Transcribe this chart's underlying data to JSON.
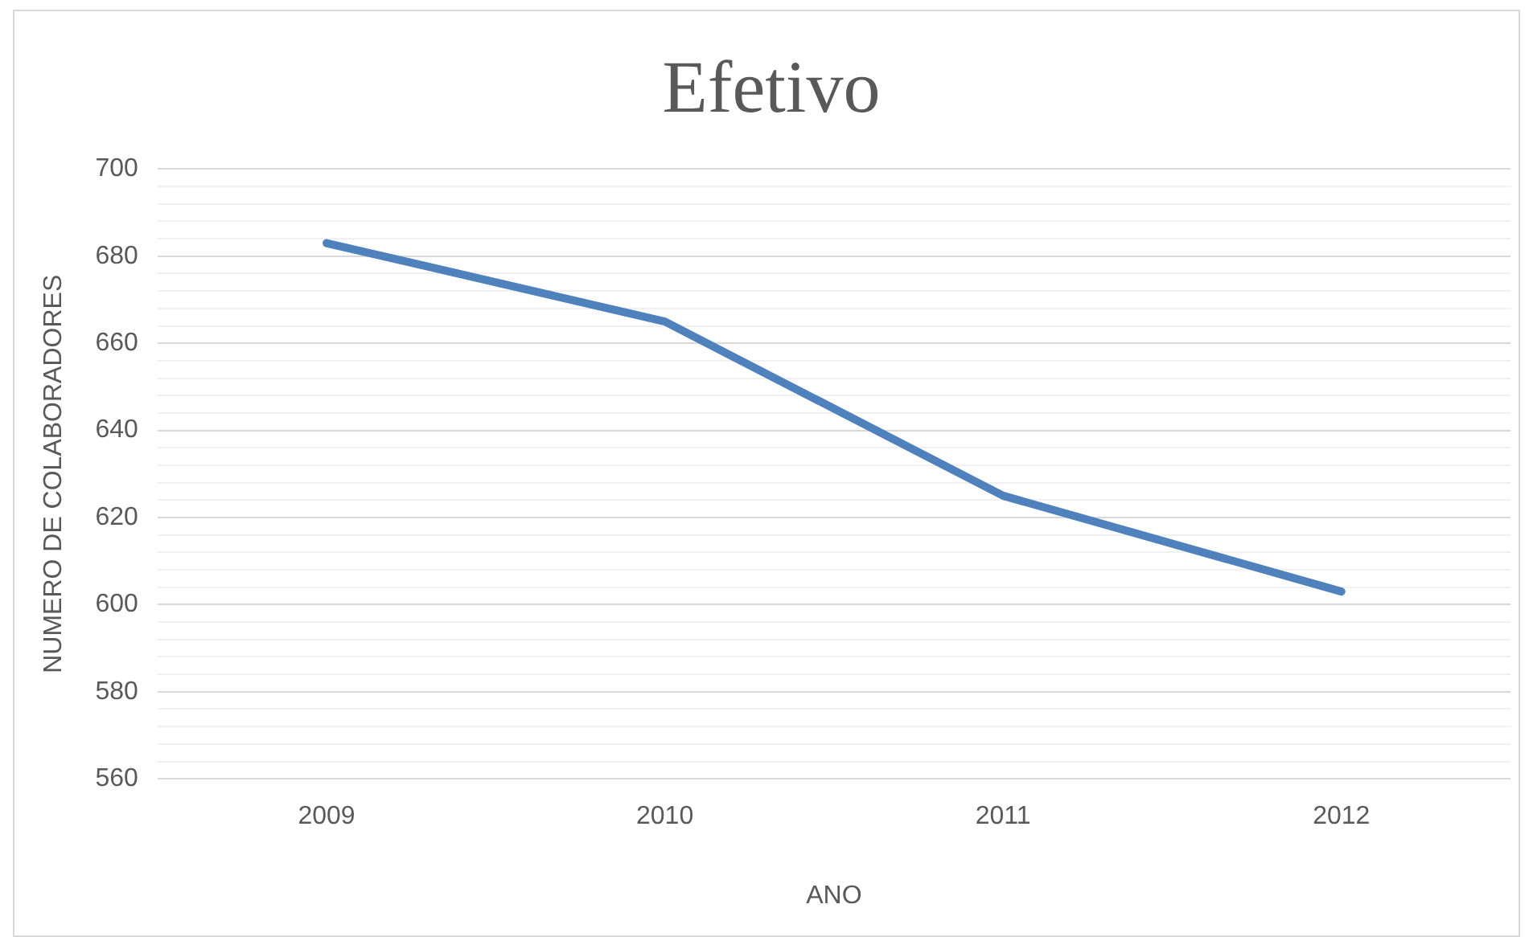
{
  "chart_data": {
    "type": "line",
    "title": "Efetivo",
    "xlabel": "ANO",
    "ylabel": "NUMERO DE COLABORADORES",
    "categories": [
      "2009",
      "2010",
      "2011",
      "2012"
    ],
    "series": [
      {
        "color": "#4f81bd",
        "values": [
          683,
          665,
          625,
          603
        ]
      }
    ],
    "ylim": [
      560,
      700
    ],
    "yticks": [
      560,
      {
        "value": 564,
        "label": null
      },
      {
        "value": 568,
        "label": null
      },
      {
        "value": 572,
        "label": null
      },
      {
        "value": 576,
        "label": null
      },
      580,
      {
        "value": 584,
        "label": null
      },
      {
        "value": 588,
        "label": null
      },
      {
        "value": 592,
        "label": null
      },
      {
        "value": 596,
        "label": null
      },
      600,
      {
        "value": 604,
        "label": null
      },
      {
        "value": 608,
        "label": null
      },
      {
        "value": 612,
        "label": null
      },
      {
        "value": 616,
        "label": null
      },
      620,
      {
        "value": 624,
        "label": null
      },
      {
        "value": 628,
        "label": null
      },
      {
        "value": 632,
        "label": null
      },
      {
        "value": 636,
        "label": null
      },
      640,
      {
        "value": 644,
        "label": null
      },
      {
        "value": 648,
        "label": null
      },
      {
        "value": 652,
        "label": null
      },
      {
        "value": 656,
        "label": null
      },
      660,
      {
        "value": 664,
        "label": null
      },
      {
        "value": 668,
        "label": null
      },
      {
        "value": 672,
        "label": null
      },
      {
        "value": 676,
        "label": null
      },
      680,
      {
        "value": 684,
        "label": null
      },
      {
        "value": 688,
        "label": null
      },
      {
        "value": 692,
        "label": null
      },
      {
        "value": 696,
        "label": null
      },
      700
    ],
    "grid": "y",
    "legend": false,
    "marker": "none",
    "line_style": "solid"
  }
}
